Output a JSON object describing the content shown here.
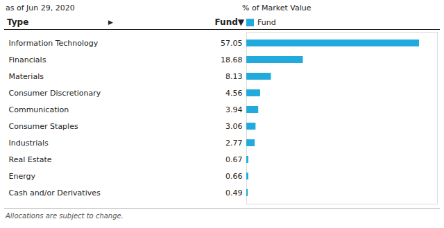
{
  "chart_data": {
    "type": "bar",
    "orientation": "horizontal",
    "title": "% of Market Value",
    "subtitle": "as of Jun 29, 2020",
    "y_label": "Type",
    "annotations": [
      "▶",
      "Fund▼",
      "Allocations are subject to change."
    ],
    "categories": [
      "Information Technology",
      "Financials",
      "Materials",
      "Consumer Discretionary",
      "Communication",
      "Consumer Staples",
      "Industrials",
      "Real Estate",
      "Energy",
      "Cash and/or Derivatives"
    ],
    "series": [
      {
        "name": "Fund",
        "color": "#22AADD",
        "values": [
          57.05,
          18.68,
          8.13,
          4.56,
          3.94,
          3.06,
          2.77,
          0.67,
          0.66,
          0.49
        ]
      }
    ],
    "xlim": [
      0,
      63
    ],
    "tick_labels": "y",
    "data_labels": true,
    "legend": "upper left"
  }
}
